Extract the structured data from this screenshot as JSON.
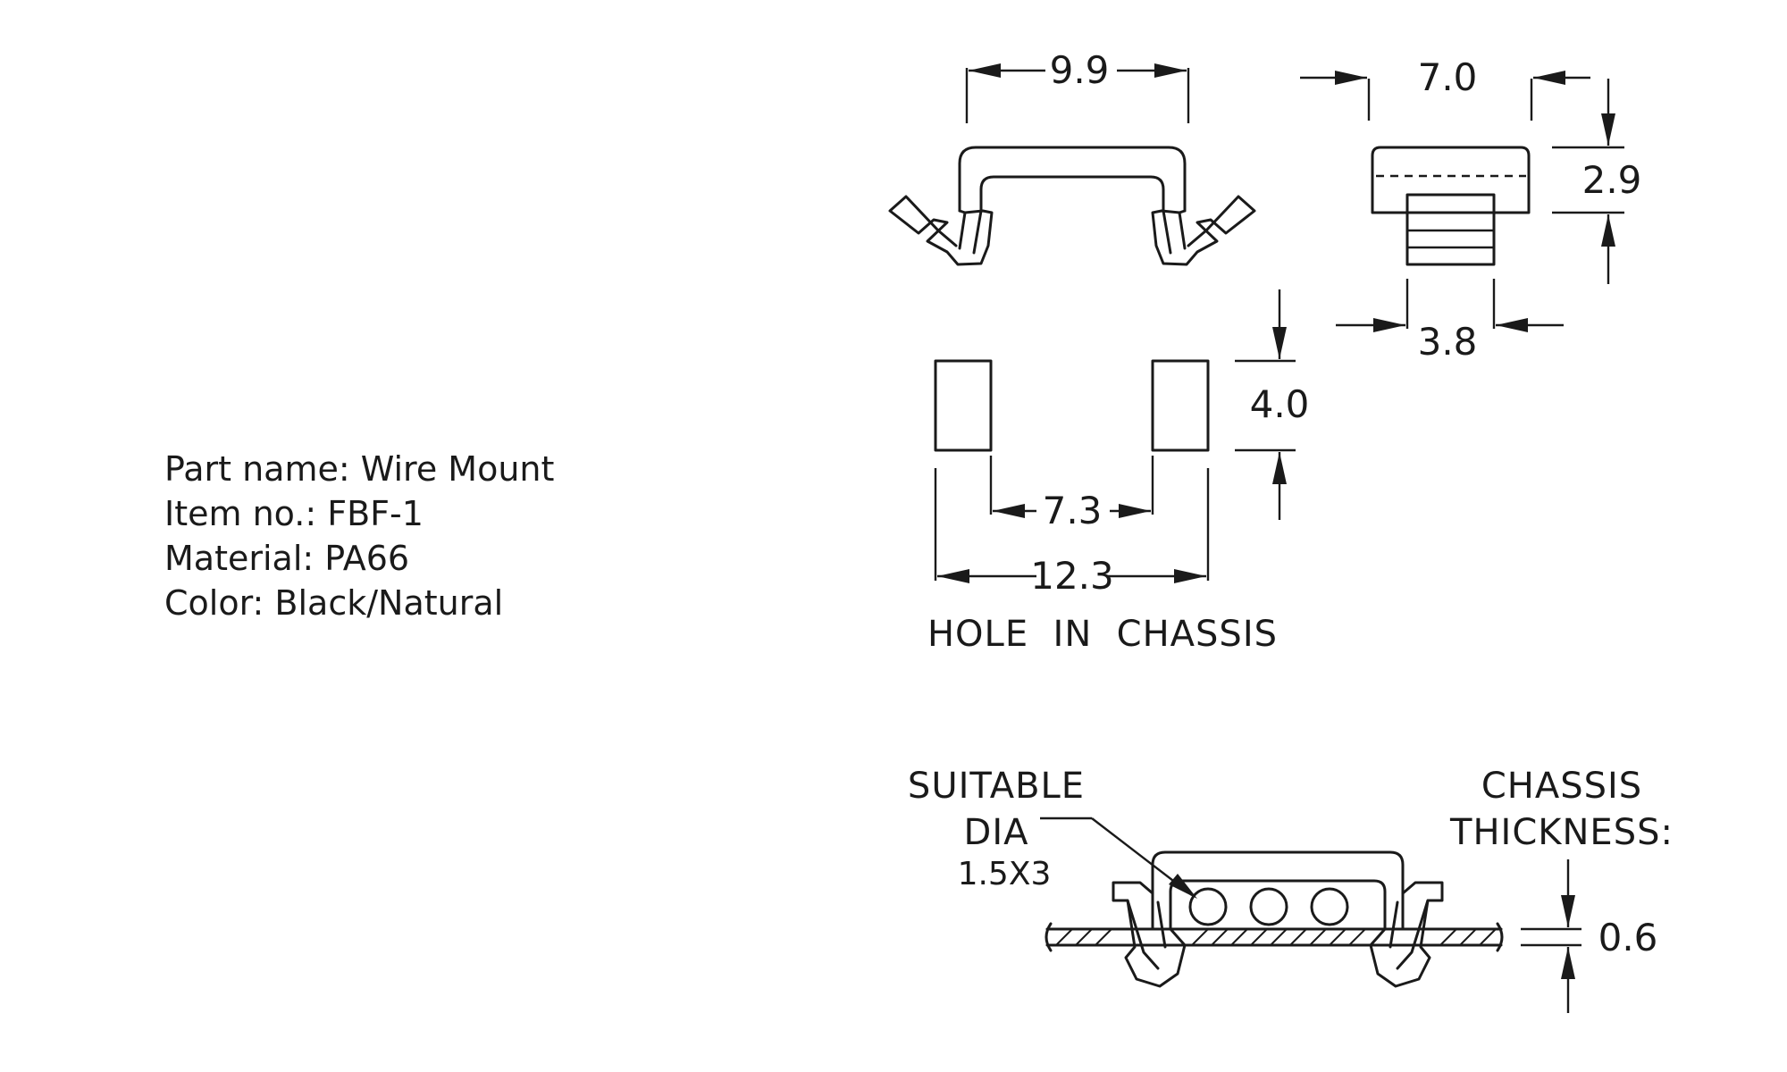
{
  "spec": {
    "part_name": "Part name: Wire Mount",
    "item_no": "Item no.: FBF-1",
    "material": "Material: PA66",
    "color": "Color: Black/Natural"
  },
  "dimensions": {
    "top_width": "9.9",
    "side_width": "7.0",
    "side_height": "2.9",
    "base_width": "3.8",
    "hole_height": "4.0",
    "hole_inner": "7.3",
    "hole_outer": "12.3",
    "chassis_thickness_value": "0.6"
  },
  "labels": {
    "hole_in_chassis": "HOLE  IN  CHASSIS",
    "suitable": "SUITABLE",
    "dia": "DIA",
    "dia_value": "1.5X3",
    "chassis": "CHASSIS",
    "thickness": "THICKNESS:"
  }
}
